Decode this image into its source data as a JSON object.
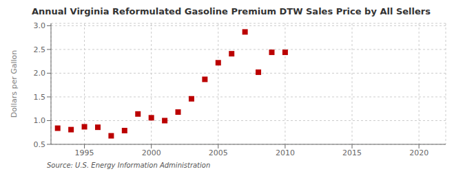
{
  "chart_data": {
    "type": "scatter",
    "title": "Annual Virginia Reformulated Gasoline Premium DTW Sales Price by All Sellers",
    "ylabel": "Dollars per Gallon",
    "source": "Source: U.S. Energy Information Administration",
    "x": [
      1993,
      1994,
      1995,
      1996,
      1997,
      1998,
      1999,
      2000,
      2001,
      2002,
      2003,
      2004,
      2005,
      2006,
      2007,
      2008,
      2009,
      2010
    ],
    "values": [
      0.84,
      0.81,
      0.87,
      0.86,
      0.68,
      0.79,
      1.14,
      1.06,
      1.0,
      1.18,
      1.46,
      1.87,
      2.22,
      2.41,
      2.87,
      2.02,
      2.44,
      2.44
    ],
    "xlim": [
      1992.5,
      2022
    ],
    "ylim": [
      0.5,
      3.05
    ],
    "xticks": [
      1995,
      2000,
      2005,
      2010,
      2015,
      2020
    ],
    "yticks": [
      0.5,
      {
        "value": 1.0,
        "label": "1.0"
      },
      1.5,
      {
        "value": 2.0,
        "label": "2.0"
      },
      2.5,
      {
        "value": 3.0,
        "label": "3.0"
      }
    ],
    "color": "#bb0000",
    "marker": "square",
    "grid": true
  }
}
